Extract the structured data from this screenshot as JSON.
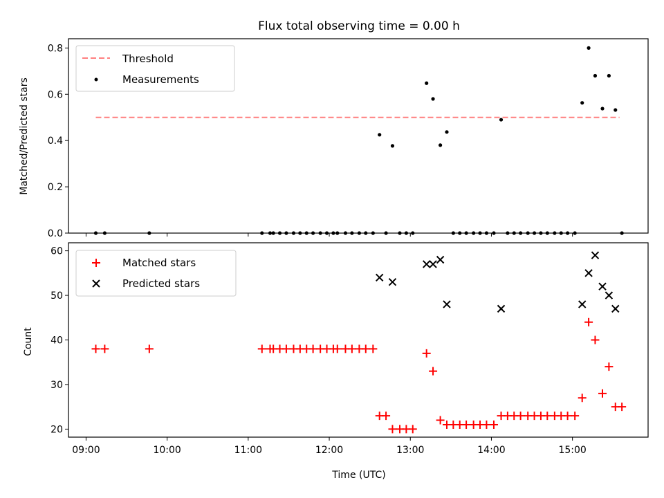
{
  "chart_data": {
    "title": "Flux total observing time = 0.00 h",
    "xlabel": "Time (UTC)",
    "x_ticks": [
      "09:00",
      "10:00",
      "11:00",
      "12:00",
      "13:00",
      "14:00",
      "15:00"
    ],
    "x_tick_hours": [
      9,
      10,
      11,
      12,
      13,
      14,
      15
    ],
    "xlim": [
      8.783,
      15.933
    ],
    "panels": [
      {
        "type": "scatter",
        "ylabel": "Matched/Predicted stars",
        "ylim": [
          0,
          0.84
        ],
        "y_ticks": [
          0.0,
          0.2,
          0.4,
          0.6,
          0.8
        ],
        "y_tick_labels": [
          "0.0",
          "0.2",
          "0.4",
          "0.6",
          "0.8"
        ],
        "threshold": {
          "name": "Threshold",
          "value": 0.5,
          "x_range": [
            9.12,
            15.58
          ],
          "color": "#ff7f7f"
        },
        "series": [
          {
            "name": "Measurements",
            "color": "#000000",
            "marker": "dot",
            "x": [
              9.12,
              9.23,
              9.78,
              11.17,
              11.27,
              11.31,
              11.39,
              11.47,
              11.56,
              11.64,
              11.72,
              11.8,
              11.89,
              11.97,
              12.05,
              12.1,
              12.2,
              12.28,
              12.37,
              12.45,
              12.54,
              12.62,
              12.7,
              12.78,
              12.87,
              12.95,
              13.03,
              13.2,
              13.28,
              13.37,
              13.45,
              13.53,
              13.61,
              13.69,
              13.78,
              13.86,
              13.94,
              14.03,
              14.12,
              14.2,
              14.28,
              14.36,
              14.45,
              14.53,
              14.61,
              14.69,
              14.78,
              14.86,
              14.94,
              15.03,
              15.12,
              15.2,
              15.28,
              15.37,
              15.45,
              15.53,
              15.61
            ],
            "y": [
              0,
              0,
              0,
              0,
              0,
              0,
              0,
              0,
              0,
              0,
              0,
              0,
              0,
              0,
              0,
              0,
              0,
              0,
              0,
              0,
              0,
              0.425,
              0,
              0.377,
              0,
              0,
              0,
              0.648,
              0.58,
              0.38,
              0.437,
              0,
              0,
              0,
              0,
              0,
              0,
              0,
              0.49,
              0,
              0,
              0,
              0,
              0,
              0,
              0,
              0,
              0,
              0,
              0,
              0.563,
              0.8,
              0.68,
              0.538,
              0.68,
              0.532,
              0
            ]
          }
        ]
      },
      {
        "type": "scatter",
        "ylabel": "Count",
        "ylim": [
          18.2,
          61.8
        ],
        "y_ticks": [
          20,
          30,
          40,
          50,
          60
        ],
        "y_tick_labels": [
          "20",
          "30",
          "40",
          "50",
          "60"
        ],
        "series": [
          {
            "name": "Matched stars",
            "color": "#ff0000",
            "marker": "plus",
            "x": [
              9.12,
              9.23,
              9.78,
              11.17,
              11.27,
              11.31,
              11.39,
              11.47,
              11.56,
              11.64,
              11.72,
              11.8,
              11.89,
              11.97,
              12.05,
              12.1,
              12.2,
              12.28,
              12.37,
              12.45,
              12.54,
              12.62,
              12.7,
              12.78,
              12.87,
              12.95,
              13.03,
              13.2,
              13.28,
              13.37,
              13.45,
              13.53,
              13.61,
              13.69,
              13.78,
              13.86,
              13.94,
              14.03,
              14.12,
              14.2,
              14.28,
              14.36,
              14.45,
              14.53,
              14.61,
              14.69,
              14.78,
              14.86,
              14.94,
              15.03,
              15.12,
              15.2,
              15.28,
              15.37,
              15.45,
              15.53,
              15.61
            ],
            "y": [
              38,
              38,
              38,
              38,
              38,
              38,
              38,
              38,
              38,
              38,
              38,
              38,
              38,
              38,
              38,
              38,
              38,
              38,
              38,
              38,
              38,
              23,
              23,
              20,
              20,
              20,
              20,
              37,
              33,
              22,
              21,
              21,
              21,
              21,
              21,
              21,
              21,
              21,
              23,
              23,
              23,
              23,
              23,
              23,
              23,
              23,
              23,
              23,
              23,
              23,
              27,
              44,
              40,
              28,
              34,
              25,
              25
            ]
          },
          {
            "name": "Predicted stars",
            "color": "#000000",
            "marker": "x",
            "x": [
              12.62,
              12.78,
              13.2,
              13.28,
              13.37,
              13.45,
              14.12,
              15.12,
              15.2,
              15.28,
              15.37,
              15.45,
              15.53
            ],
            "y": [
              54,
              53,
              57,
              57,
              58,
              48,
              47,
              48,
              55,
              59,
              52,
              50,
              47
            ]
          }
        ]
      }
    ]
  }
}
